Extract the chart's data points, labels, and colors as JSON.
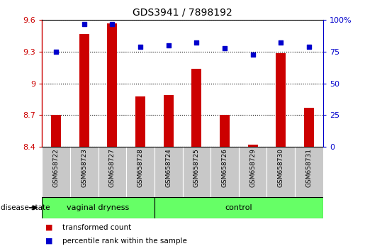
{
  "title": "GDS3941 / 7898192",
  "samples": [
    "GSM658722",
    "GSM658723",
    "GSM658727",
    "GSM658728",
    "GSM658724",
    "GSM658725",
    "GSM658726",
    "GSM658729",
    "GSM658730",
    "GSM658731"
  ],
  "transformed_counts": [
    8.7,
    9.47,
    9.57,
    8.88,
    8.89,
    9.14,
    8.7,
    8.42,
    9.29,
    8.77
  ],
  "percentile_ranks": [
    75,
    97,
    97,
    79,
    80,
    82,
    78,
    73,
    82,
    79
  ],
  "ylim_left": [
    8.4,
    9.6
  ],
  "ylim_right": [
    0,
    100
  ],
  "yticks_left": [
    8.4,
    8.7,
    9.0,
    9.3,
    9.6
  ],
  "yticks_right": [
    0,
    25,
    50,
    75,
    100
  ],
  "ytick_labels_left": [
    "8.4",
    "8.7",
    "9",
    "9.3",
    "9.6"
  ],
  "ytick_labels_right": [
    "0",
    "25",
    "50",
    "75",
    "100%"
  ],
  "group1_label": "vaginal dryness",
  "group1_count": 4,
  "group2_label": "control",
  "group2_count": 6,
  "bar_color": "#CC0000",
  "dot_color": "#0000CC",
  "left_axis_color": "#CC0000",
  "right_axis_color": "#0000CC",
  "disease_state_label": "disease state",
  "legend_items": [
    "transformed count",
    "percentile rank within the sample"
  ],
  "group_bg_color": "#C8C8C8",
  "group_fill_color": "#66FF66",
  "group_border_color": "#000000",
  "bar_width": 0.35
}
